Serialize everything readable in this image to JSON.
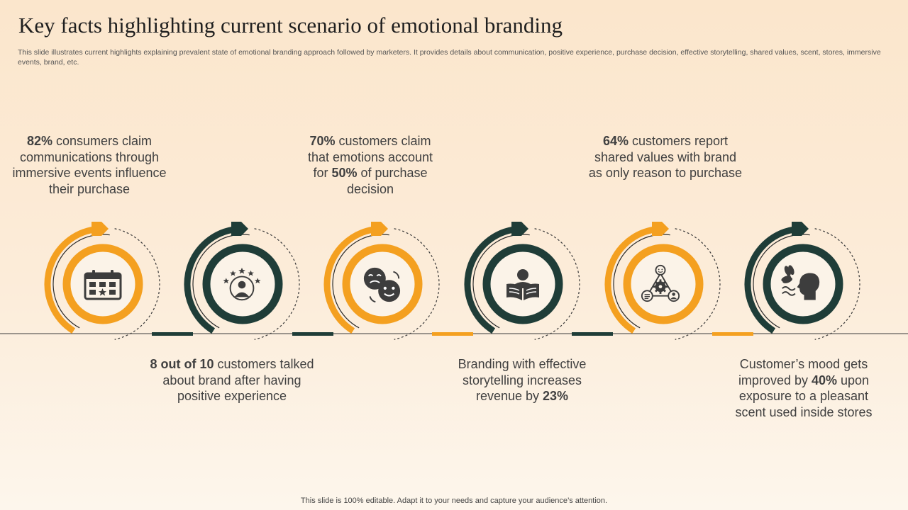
{
  "header": {
    "title": "Key facts highlighting current scenario of emotional branding",
    "subtitle": "This slide illustrates current highlights explaining prevalent state of emotional branding approach followed by marketers. It provides details about communication, positive experience, purchase decision, effective storytelling, shared values, scent, stores, immersive events, brand, etc."
  },
  "colors": {
    "orange": "#f4a020",
    "dark_green": "#1f3d38",
    "background": "#fbe6cc"
  },
  "facts": [
    {
      "highlight": "82%",
      "text": " consumers claim communications through immersive events influence their purchase",
      "icon": "calendar-icon",
      "color": "orange"
    },
    {
      "highlight": "8 out of 10",
      "text": " customers talked about brand after having positive experience",
      "icon": "customer-rating-icon",
      "color": "dark_green"
    },
    {
      "highlight": "70%",
      "text": " customers claim that emotions account for ",
      "highlight2": "50%",
      "text2": " of purchase decision",
      "icon": "emotions-icon",
      "color": "orange"
    },
    {
      "text": "Branding with effective storytelling increases revenue by ",
      "highlight": "23%",
      "icon": "reading-person-icon",
      "color": "dark_green"
    },
    {
      "highlight": "64%",
      "text": " customers report shared values with brand as only reason to purchase",
      "icon": "shared-values-network-icon",
      "color": "orange"
    },
    {
      "text": "Customer’s mood gets improved by ",
      "highlight": "40%",
      "text2": " upon exposure to a pleasant scent used inside stores",
      "icon": "scent-icon",
      "color": "dark_green"
    }
  ],
  "footer": "This slide is 100% editable. Adapt it to your needs and capture your audience’s attention."
}
